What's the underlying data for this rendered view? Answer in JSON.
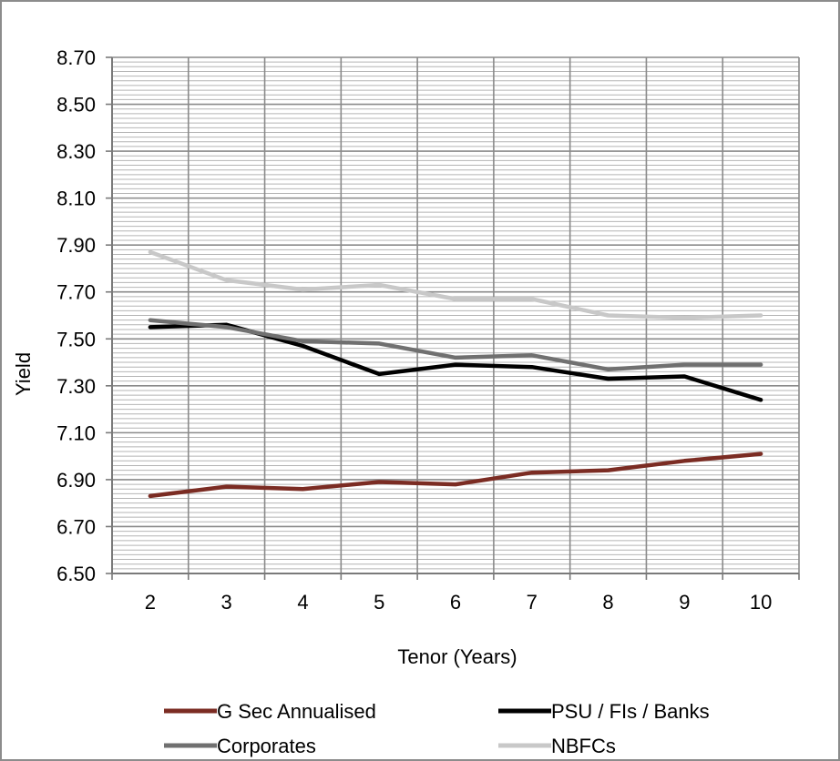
{
  "chart_data": {
    "type": "line",
    "title": "",
    "xlabel": "Tenor (Years)",
    "ylabel": "Yield",
    "x": [
      2,
      3,
      4,
      5,
      6,
      7,
      8,
      9,
      10
    ],
    "ylim": [
      6.5,
      8.7
    ],
    "y_ticks": [
      "6.50",
      "6.70",
      "6.90",
      "7.10",
      "7.30",
      "7.50",
      "7.70",
      "7.90",
      "8.10",
      "8.30",
      "8.50",
      "8.70"
    ],
    "x_ticks": [
      "2",
      "3",
      "4",
      "5",
      "6",
      "7",
      "8",
      "9",
      "10"
    ],
    "grid": true,
    "legend_position": "bottom",
    "series": [
      {
        "name": "G Sec Annualised",
        "color": "#7b2c23",
        "values": [
          6.83,
          6.87,
          6.86,
          6.89,
          6.88,
          6.93,
          6.94,
          6.98,
          7.01
        ]
      },
      {
        "name": "PSU / FIs / Banks",
        "color": "#000000",
        "values": [
          7.55,
          7.56,
          7.47,
          7.35,
          7.39,
          7.38,
          7.33,
          7.34,
          7.24
        ]
      },
      {
        "name": "Corporates",
        "color": "#707070",
        "values": [
          7.58,
          7.55,
          7.49,
          7.48,
          7.42,
          7.43,
          7.37,
          7.39,
          7.39
        ]
      },
      {
        "name": "NBFCs",
        "color": "#c8c8c8",
        "values": [
          7.87,
          7.75,
          7.71,
          7.73,
          7.67,
          7.67,
          7.6,
          7.59,
          7.6
        ]
      }
    ]
  }
}
